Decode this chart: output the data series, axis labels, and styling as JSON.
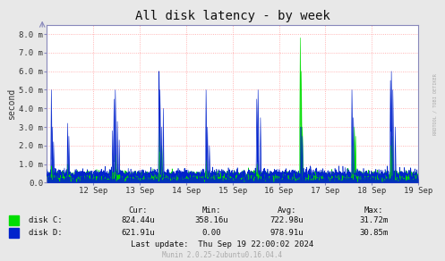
{
  "title": "All disk latency - by week",
  "ylabel": "second",
  "right_label": "RRDTOOL / TOBI OETIKER",
  "background_color": "#e8e8e8",
  "plot_bg_color": "#ffffff",
  "grid_color": "#ff8888",
  "ylim": [
    0.0,
    0.0085
  ],
  "ytick_vals": [
    0.0,
    0.001,
    0.002,
    0.003,
    0.004,
    0.005,
    0.006,
    0.007,
    0.008
  ],
  "ytick_labels": [
    "0.0",
    "1.0 m",
    "2.0 m",
    "3.0 m",
    "4.0 m",
    "5.0 m",
    "6.0 m",
    "7.0 m",
    "8.0 m"
  ],
  "x_labels": [
    "12 Sep",
    "13 Sep",
    "14 Sep",
    "15 Sep",
    "16 Sep",
    "17 Sep",
    "18 Sep",
    "19 Sep"
  ],
  "color_green": "#00dd00",
  "color_blue": "#0022cc",
  "color_spine": "#8888bb",
  "legend_items": [
    {
      "label": "disk C:",
      "color": "#00dd00"
    },
    {
      "label": "disk D:",
      "color": "#0022cc"
    }
  ],
  "table_headers": [
    "Cur:",
    "Min:",
    "Avg:",
    "Max:"
  ],
  "table_data": [
    [
      "824.44u",
      "358.16u",
      "722.98u",
      "31.72m"
    ],
    [
      "621.91u",
      "0.00",
      "978.91u",
      "30.85m"
    ]
  ],
  "last_update": "Last update:  Thu Sep 19 22:00:02 2024",
  "munin_version": "Munin 2.0.25-2ubuntu0.16.04.4",
  "title_fontsize": 10,
  "axis_label_fontsize": 7,
  "tick_fontsize": 6.5,
  "small_fontsize": 5.5,
  "table_fontsize": 6.5
}
